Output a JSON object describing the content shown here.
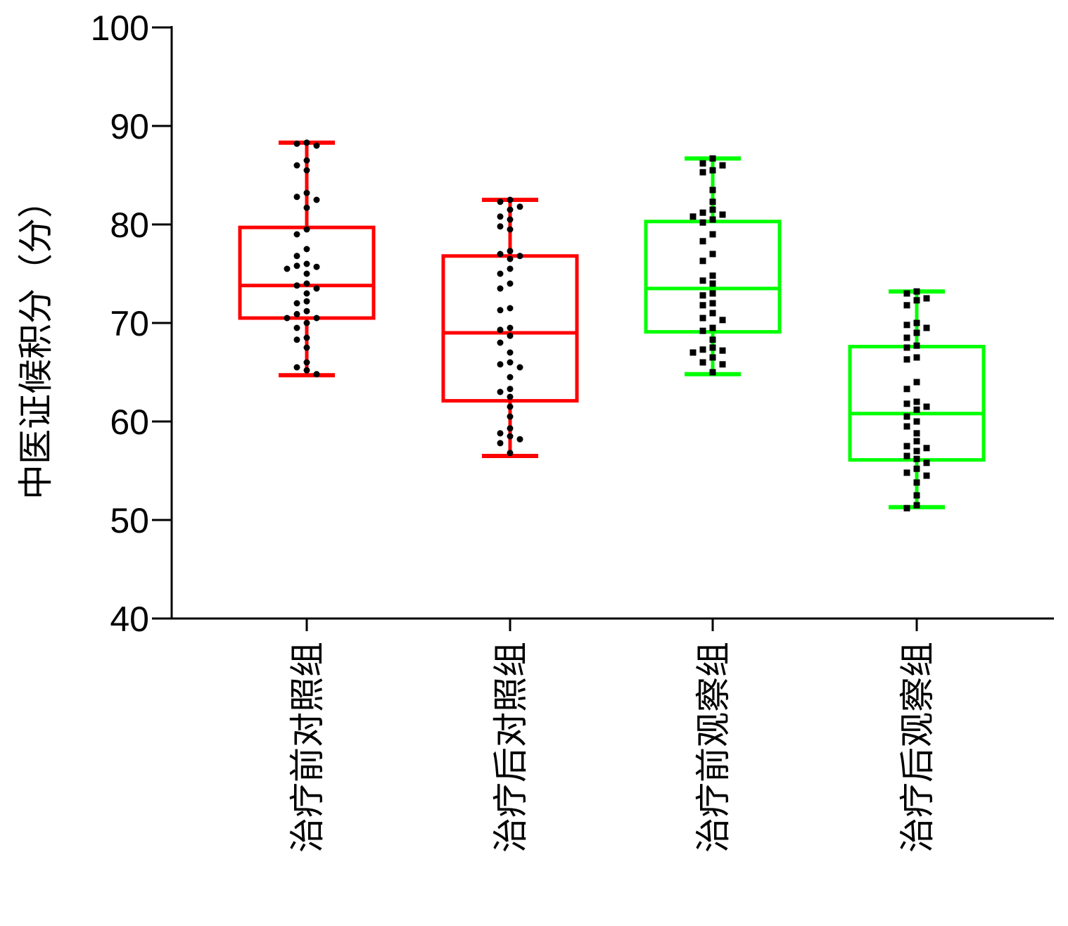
{
  "chart_data": {
    "type": "box",
    "ylabel": "中医证候积分（分）",
    "xlabel": "",
    "ylim": [
      40,
      100
    ],
    "yticks": [
      40,
      50,
      60,
      70,
      80,
      90,
      100
    ],
    "grid": false,
    "legend": "none",
    "categories": [
      "治疗前对照组",
      "治疗后对照组",
      "治疗前观察组",
      "治疗后观察组"
    ],
    "series": [
      {
        "category": "治疗前对照组",
        "color": "#ff0000",
        "marker": "circle",
        "min": 64.7,
        "q1": 70.5,
        "median": 73.8,
        "q3": 79.7,
        "max": 88.3,
        "points": [
          88.3,
          88.2,
          88.0,
          86.5,
          86.0,
          85.5,
          83.2,
          82.8,
          82.5,
          81.7,
          79.5,
          79.0,
          77.5,
          76.8,
          76.0,
          75.8,
          75.7,
          75.5,
          75.0,
          74.0,
          73.8,
          73.5,
          73.0,
          72.2,
          72.0,
          71.2,
          70.9,
          70.5,
          70.5,
          70.0,
          69.5,
          68.5,
          68.3,
          67.5,
          66.0,
          65.5,
          65.2,
          64.8
        ]
      },
      {
        "category": "治疗后对照组",
        "color": "#ff0000",
        "marker": "circle",
        "min": 56.5,
        "q1": 62.1,
        "median": 69.0,
        "q3": 76.8,
        "max": 82.5,
        "points": [
          82.5,
          82.3,
          81.8,
          81.5,
          80.8,
          80.5,
          79.8,
          79.5,
          77.3,
          77.0,
          76.8,
          76.5,
          75.5,
          75.0,
          74.0,
          73.5,
          71.5,
          71.3,
          69.5,
          69.3,
          68.7,
          68.0,
          67.0,
          66.0,
          65.8,
          65.5,
          64.5,
          63.3,
          63.0,
          62.5,
          61.5,
          60.5,
          59.3,
          58.8,
          58.5,
          58.2,
          57.8,
          56.8
        ]
      },
      {
        "category": "治疗前观察组",
        "color": "#00ff00",
        "marker": "square",
        "min": 64.8,
        "q1": 69.1,
        "median": 73.5,
        "q3": 80.3,
        "max": 86.7,
        "points": [
          86.7,
          86.2,
          86.0,
          85.5,
          85.3,
          83.5,
          82.3,
          81.5,
          81.2,
          81.0,
          80.8,
          80.5,
          80.2,
          79.0,
          78.3,
          77.0,
          76.3,
          74.8,
          74.3,
          74.0,
          73.0,
          72.8,
          72.0,
          71.8,
          71.0,
          70.5,
          70.3,
          69.5,
          69.2,
          68.3,
          67.5,
          67.3,
          67.2,
          67.0,
          66.5,
          66.0,
          65.8,
          65.0
        ]
      },
      {
        "category": "治疗后观察组",
        "color": "#00ff00",
        "marker": "square",
        "min": 51.3,
        "q1": 56.1,
        "median": 60.8,
        "q3": 67.6,
        "max": 73.2,
        "points": [
          73.2,
          73.0,
          72.5,
          72.3,
          71.8,
          70.0,
          69.8,
          69.5,
          69.0,
          68.5,
          67.7,
          67.5,
          66.5,
          66.3,
          64.0,
          63.3,
          62.0,
          61.8,
          61.5,
          61.2,
          60.5,
          60.0,
          59.5,
          58.8,
          58.0,
          57.5,
          57.3,
          57.0,
          56.5,
          56.2,
          55.8,
          55.2,
          54.8,
          54.5,
          53.8,
          52.5,
          51.5,
          51.2
        ]
      }
    ]
  }
}
